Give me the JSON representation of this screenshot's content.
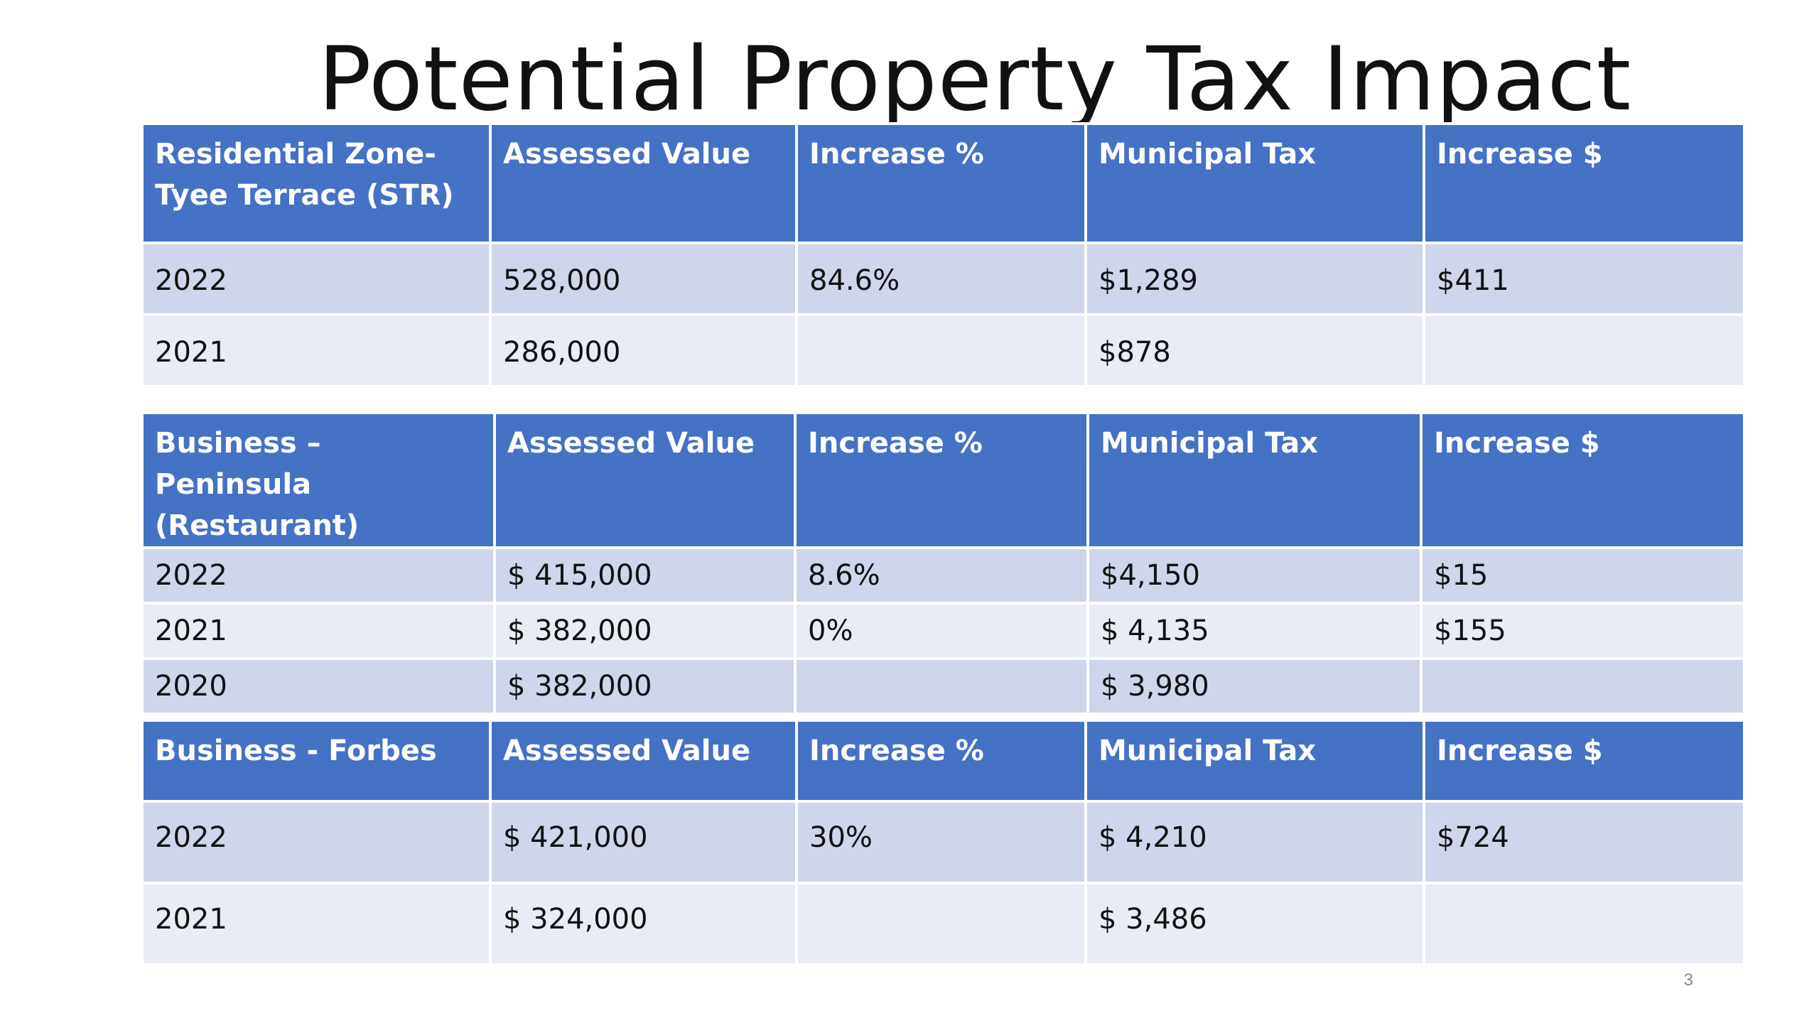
{
  "slide": {
    "title": "Potential Property Tax Impact",
    "page_number": "3"
  },
  "colors": {
    "header_fill": "#4472c4",
    "row_band_dark": "#cfd5ea",
    "row_band_light": "#e9ebf5"
  },
  "tables": [
    {
      "headers": [
        "Residential Zone- Tyee Terrace (STR)",
        "Assessed Value",
        "Increase %",
        "Municipal Tax",
        "Increase $"
      ],
      "rows": [
        [
          "2022",
          "528,000",
          "84.6%",
          "$1,289",
          "$411"
        ],
        [
          "2021",
          "286,000",
          "",
          "$878",
          ""
        ]
      ]
    },
    {
      "headers": [
        "Business – Peninsula (Restaurant)",
        "Assessed Value",
        "Increase %",
        "Municipal Tax",
        "Increase $"
      ],
      "rows": [
        [
          "2022",
          "$ 415,000",
          "8.6%",
          "$4,150",
          "$15"
        ],
        [
          "2021",
          "$ 382,000",
          "0%",
          "$ 4,135",
          "$155"
        ],
        [
          "2020",
          "$ 382,000",
          "",
          "$ 3,980",
          ""
        ]
      ]
    },
    {
      "headers": [
        "Business - Forbes",
        "Assessed Value",
        "Increase %",
        "Municipal Tax",
        "Increase $"
      ],
      "rows": [
        [
          "2022",
          "$ 421,000",
          "30%",
          "$ 4,210",
          "$724"
        ],
        [
          "2021",
          "$ 324,000",
          "",
          "$ 3,486",
          ""
        ]
      ]
    }
  ]
}
